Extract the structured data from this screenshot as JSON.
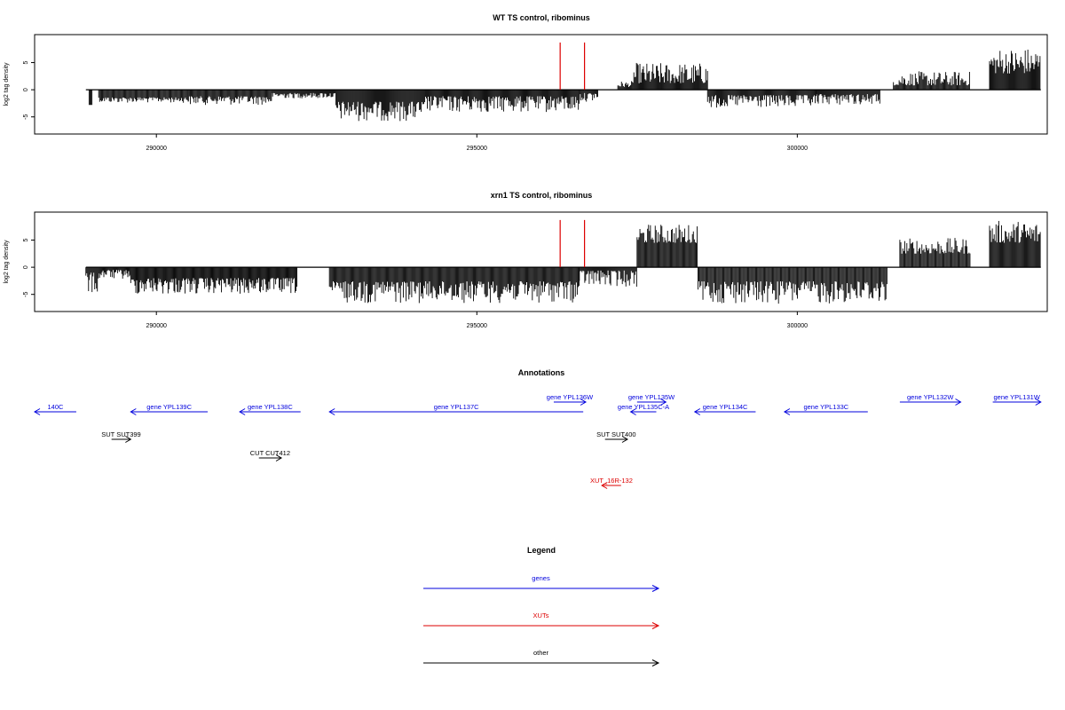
{
  "chart_data": [
    {
      "type": "bar",
      "title": "WT TS control, ribominus",
      "ylabel": "log2 tag density",
      "xlim": [
        288100,
        303900
      ],
      "ylim": [
        -7.5,
        9.5
      ],
      "yticks": [
        {
          "v": -5,
          "label": "-5"
        },
        {
          "v": 0,
          "label": "0"
        },
        {
          "v": 5,
          "label": "5"
        }
      ],
      "xticks": [
        {
          "v": 290000,
          "label": "290000"
        },
        {
          "v": 295000,
          "label": "295000"
        },
        {
          "v": 300000,
          "label": "300000"
        }
      ],
      "bar_color": "#000000",
      "marker_color": "#dd0000",
      "markers": [
        296300,
        296680
      ],
      "marker_top": 8.7,
      "data_range": [
        288900,
        303800
      ],
      "regions": [
        {
          "x": [
            288950,
            289000
          ],
          "y": [
            -2.8,
            -2.8
          ]
        },
        {
          "x": [
            289100,
            290500
          ],
          "y": [
            -1.4,
            -2.4
          ]
        },
        {
          "x": [
            290500,
            291800
          ],
          "y": [
            -1.2,
            -2.8
          ]
        },
        {
          "x": [
            291800,
            292800
          ],
          "y": [
            -0.6,
            -1.6
          ]
        },
        {
          "x": [
            292800,
            294200
          ],
          "y": [
            -2.2,
            -5.8
          ]
        },
        {
          "x": [
            294200,
            296600
          ],
          "y": [
            -1.2,
            -4.2
          ]
        },
        {
          "x": [
            296600,
            296900
          ],
          "y": [
            -0.6,
            -2.2
          ]
        },
        {
          "x": [
            297200,
            297450
          ],
          "y": [
            0.5,
            1.6
          ]
        },
        {
          "x": [
            297450,
            298600
          ],
          "y": [
            1.2,
            5.0
          ]
        },
        {
          "x": [
            298600,
            300300
          ],
          "y": [
            -1.0,
            -3.4
          ]
        },
        {
          "x": [
            300300,
            301300
          ],
          "y": [
            -0.8,
            -2.8
          ]
        },
        {
          "x": [
            301500,
            302700
          ],
          "y": [
            0.8,
            3.4
          ]
        },
        {
          "x": [
            303000,
            303800
          ],
          "y": [
            3.0,
            7.8
          ]
        }
      ]
    },
    {
      "type": "bar",
      "title": "xrn1 TS control, ribominus",
      "ylabel": "log2 tag density",
      "xlim": [
        288100,
        303900
      ],
      "ylim": [
        -7.5,
        9.5
      ],
      "yticks": [
        {
          "v": -5,
          "label": "-5"
        },
        {
          "v": 0,
          "label": "0"
        },
        {
          "v": 5,
          "label": "5"
        }
      ],
      "xticks": [
        {
          "v": 290000,
          "label": "290000"
        },
        {
          "v": 295000,
          "label": "295000"
        },
        {
          "v": 300000,
          "label": "300000"
        }
      ],
      "bar_color": "#000000",
      "marker_color": "#dd0000",
      "markers": [
        296300,
        296680
      ],
      "marker_top": 8.7,
      "data_range": [
        288900,
        303800
      ],
      "regions": [
        {
          "x": [
            288900,
            289100
          ],
          "y": [
            -1.0,
            -5.0
          ]
        },
        {
          "x": [
            289100,
            289600
          ],
          "y": [
            -0.5,
            -2.2
          ]
        },
        {
          "x": [
            289600,
            292200
          ],
          "y": [
            -2.0,
            -5.0
          ]
        },
        {
          "x": [
            292700,
            296600
          ],
          "y": [
            -2.6,
            -6.6
          ]
        },
        {
          "x": [
            296600,
            297500
          ],
          "y": [
            -0.6,
            -3.6
          ]
        },
        {
          "x": [
            297500,
            298450
          ],
          "y": [
            4.5,
            8.0
          ]
        },
        {
          "x": [
            298450,
            301400
          ],
          "y": [
            -2.6,
            -6.8
          ]
        },
        {
          "x": [
            301600,
            302700
          ],
          "y": [
            2.5,
            5.4
          ]
        },
        {
          "x": [
            303000,
            303800
          ],
          "y": [
            4.5,
            8.6
          ]
        }
      ]
    }
  ],
  "annotations": {
    "title": "Annotations",
    "items": [
      {
        "label": "140C",
        "x1": 288100,
        "x2": 288750,
        "dir": "left",
        "row": "genes_low",
        "color": "#0000dd"
      },
      {
        "label": "gene YPL139C",
        "x1": 289600,
        "x2": 290800,
        "dir": "left",
        "row": "genes_low",
        "color": "#0000dd"
      },
      {
        "label": "gene YPL138C",
        "x1": 291300,
        "x2": 292250,
        "dir": "left",
        "row": "genes_low",
        "color": "#0000dd"
      },
      {
        "label": "gene YPL137C",
        "x1": 292700,
        "x2": 296660,
        "dir": "left",
        "row": "genes_low",
        "color": "#0000dd"
      },
      {
        "label": "gene YPL136W",
        "x1": 296200,
        "x2": 296700,
        "dir": "right",
        "row": "genes_high",
        "color": "#0000dd"
      },
      {
        "label": "gene YPL135W",
        "x1": 297500,
        "x2": 297950,
        "dir": "right",
        "row": "genes_high",
        "color": "#0000dd"
      },
      {
        "label": "gene YPL135C-A",
        "x1": 297400,
        "x2": 297800,
        "dir": "left",
        "row": "genes_low",
        "color": "#0000dd"
      },
      {
        "label": "gene YPL134C",
        "x1": 298400,
        "x2": 299350,
        "dir": "left",
        "row": "genes_low",
        "color": "#0000dd"
      },
      {
        "label": "gene YPL133C",
        "x1": 299800,
        "x2": 301100,
        "dir": "left",
        "row": "genes_low",
        "color": "#0000dd"
      },
      {
        "label": "gene YPL132W",
        "x1": 301600,
        "x2": 302550,
        "dir": "right",
        "row": "genes_high",
        "color": "#0000dd"
      },
      {
        "label": "gene YPL131W",
        "x1": 303050,
        "x2": 303800,
        "dir": "right",
        "row": "genes_high",
        "color": "#0000dd"
      },
      {
        "label": "SUT SUT399",
        "x1": 289300,
        "x2": 289600,
        "dir": "right",
        "row": "other1",
        "color": "#000000"
      },
      {
        "label": "SUT SUT400",
        "x1": 297000,
        "x2": 297350,
        "dir": "right",
        "row": "other1",
        "color": "#000000"
      },
      {
        "label": "CUT CUT412",
        "x1": 291600,
        "x2": 291950,
        "dir": "right",
        "row": "other2",
        "color": "#000000"
      },
      {
        "label": "XUT_16R-132",
        "x1": 296950,
        "x2": 297250,
        "dir": "left",
        "row": "xut",
        "color": "#dd0000"
      }
    ]
  },
  "legend": {
    "title": "Legend",
    "items": [
      {
        "label": "genes",
        "color": "#0000dd"
      },
      {
        "label": "XUTs",
        "color": "#dd0000"
      },
      {
        "label": "other",
        "color": "#000000"
      }
    ]
  }
}
